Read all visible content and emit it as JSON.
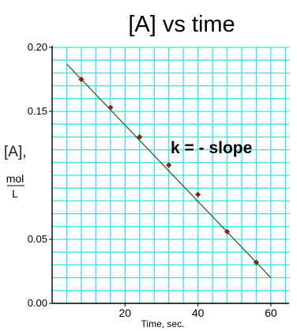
{
  "chart_data": {
    "type": "scatter",
    "title": "[A]  vs time",
    "xlabel": "Time, sec.",
    "ylabel": "[A],",
    "ylabel_unit_top": "mol",
    "ylabel_unit_bottom": "L",
    "annotation": "k = - slope",
    "xlim": [
      0,
      65
    ],
    "ylim": [
      0,
      0.2
    ],
    "xticks": [
      20,
      40,
      60
    ],
    "xtick_labels": [
      "20",
      "40",
      "60"
    ],
    "yticks": [
      0,
      0.05,
      0.15,
      0.2
    ],
    "ytick_labels": [
      "0.00",
      "0.05",
      "0.15",
      "0.20"
    ],
    "grid": true,
    "colors": {
      "grid": "#33e6e6",
      "axes": "#000000",
      "line": "#1f5a1f",
      "points": "#7a2a12"
    },
    "series": [
      {
        "x": [
          8,
          16,
          24,
          32,
          40,
          48,
          56
        ],
        "y": [
          0.175,
          0.153,
          0.13,
          0.108,
          0.085,
          0.056,
          0.032
        ]
      }
    ],
    "fit_line": {
      "x": [
        4,
        60
      ],
      "y": [
        0.187,
        0.02
      ]
    }
  }
}
